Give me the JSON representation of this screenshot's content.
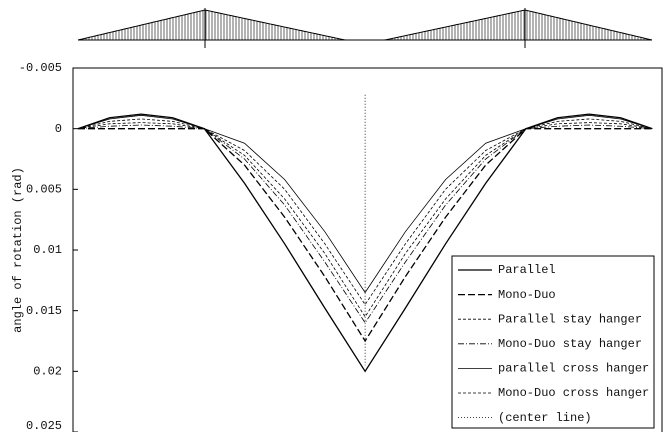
{
  "chart_data": {
    "type": "line",
    "y_label": "angle of rotation (rad)",
    "x": [
      0,
      5.5,
      11,
      16.5,
      22,
      29,
      36,
      43,
      50,
      57,
      64,
      71,
      78,
      83.5,
      89,
      94.5,
      100
    ],
    "xlim": [
      -0.87,
      101.7
    ],
    "ylim": [
      -0.005,
      0.025
    ],
    "y_inverted": true,
    "yticks": [
      -0.005,
      0,
      0.005,
      0.01,
      0.015,
      0.02,
      0.025
    ],
    "legend": "lower right",
    "series": [
      {
        "name": "Parallel",
        "color": "#000",
        "style": "solid",
        "values": [
          0,
          -0.0009,
          -0.0012,
          -0.0009,
          0,
          0.0045,
          0.0095,
          0.0148,
          0.02,
          0.0148,
          0.0095,
          0.0045,
          0,
          -0.0009,
          -0.0012,
          -0.0009,
          0
        ]
      },
      {
        "name": "Mono-Duo",
        "color": "#000",
        "style": "dashed",
        "values": [
          0,
          0,
          0,
          0,
          0,
          0.003,
          0.0073,
          0.0122,
          0.0175,
          0.0122,
          0.0073,
          0.003,
          0,
          0,
          0,
          0,
          0
        ]
      },
      {
        "name": "Parallel stay hanger",
        "color": "#000",
        "style": "short-dashed",
        "values": [
          0,
          -0.0006,
          -0.0008,
          -0.0006,
          0,
          0.0022,
          0.0058,
          0.0103,
          0.0155,
          0.0103,
          0.0058,
          0.0022,
          0,
          -0.0006,
          -0.0008,
          -0.0006,
          0
        ]
      },
      {
        "name": "Mono-Duo stay hanger",
        "color": "#000",
        "style": "dash-dot",
        "values": [
          0,
          -0.0002,
          -0.0003,
          -0.0002,
          0,
          0.0025,
          0.0063,
          0.011,
          0.016,
          0.011,
          0.0063,
          0.0025,
          0,
          -0.0002,
          -0.0003,
          -0.0002,
          0
        ]
      },
      {
        "name": "parallel cross hanger",
        "color": "#000",
        "style": "thin",
        "values": [
          0,
          -0.0008,
          -0.0011,
          -0.0008,
          0,
          0.0012,
          0.0042,
          0.0085,
          0.0135,
          0.0085,
          0.0042,
          0.0012,
          0,
          -0.0008,
          -0.0011,
          -0.0008,
          0
        ]
      },
      {
        "name": "Mono-Duo cross hanger",
        "color": "#000",
        "style": "short-dashed",
        "values": [
          0,
          -0.0004,
          -0.0005,
          -0.0004,
          0,
          0.0018,
          0.005,
          0.0095,
          0.0145,
          0.0095,
          0.005,
          0.0018,
          0,
          -0.0004,
          -0.0005,
          -0.0004,
          0
        ]
      },
      {
        "name": "(center line)",
        "color": "#000",
        "style": "dotted",
        "x": [
          50,
          50
        ],
        "values": [
          -0.0028,
          0.0195
        ]
      }
    ]
  }
}
